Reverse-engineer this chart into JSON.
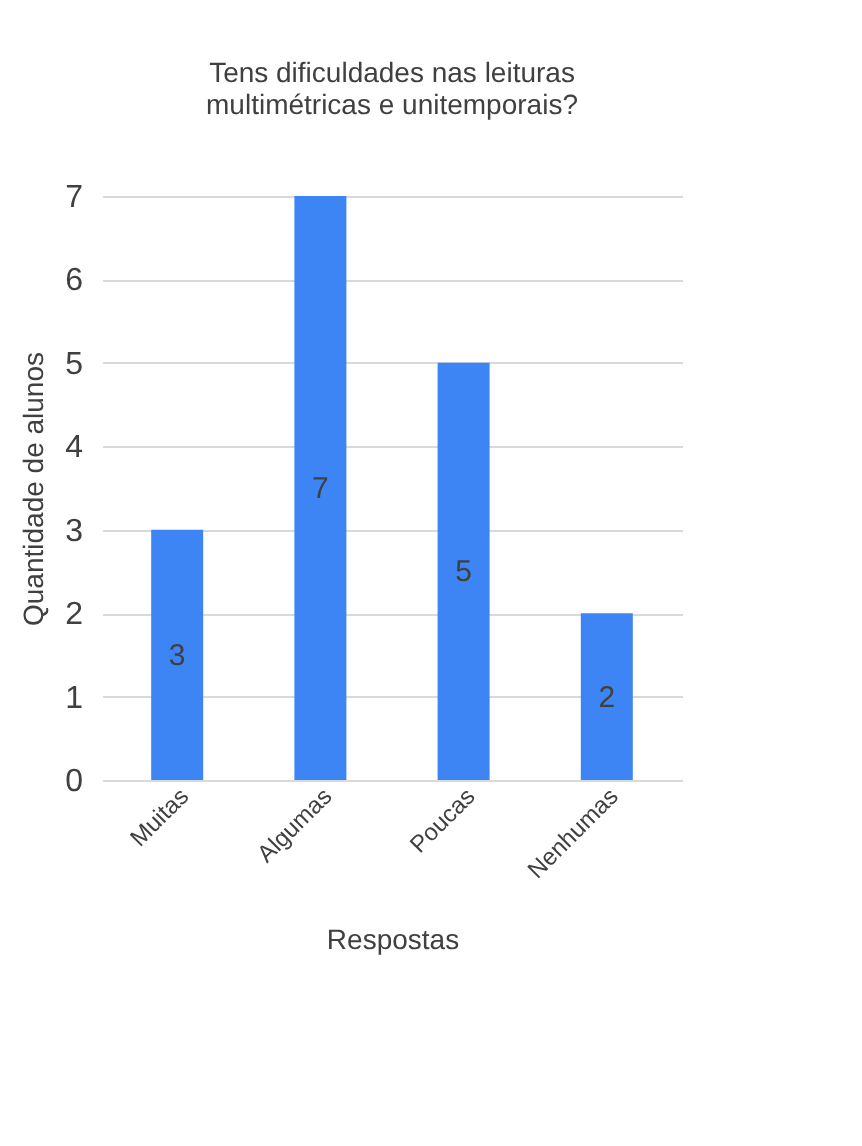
{
  "chart_data": {
    "type": "bar",
    "title": "Tens dificuldades nas leituras multimétricas e unitemporais?",
    "xlabel": "Respostas",
    "ylabel": "Quantidade de alunos",
    "categories": [
      "Muitas",
      "Algumas",
      "Poucas",
      "Nenhumas"
    ],
    "values": [
      3,
      7,
      5,
      2
    ],
    "color": "#3d85f5",
    "ylim": [
      0,
      7
    ],
    "yticks": [
      0,
      1,
      2,
      3,
      4,
      5,
      6,
      7
    ],
    "grid": "y",
    "data_labels": true
  }
}
